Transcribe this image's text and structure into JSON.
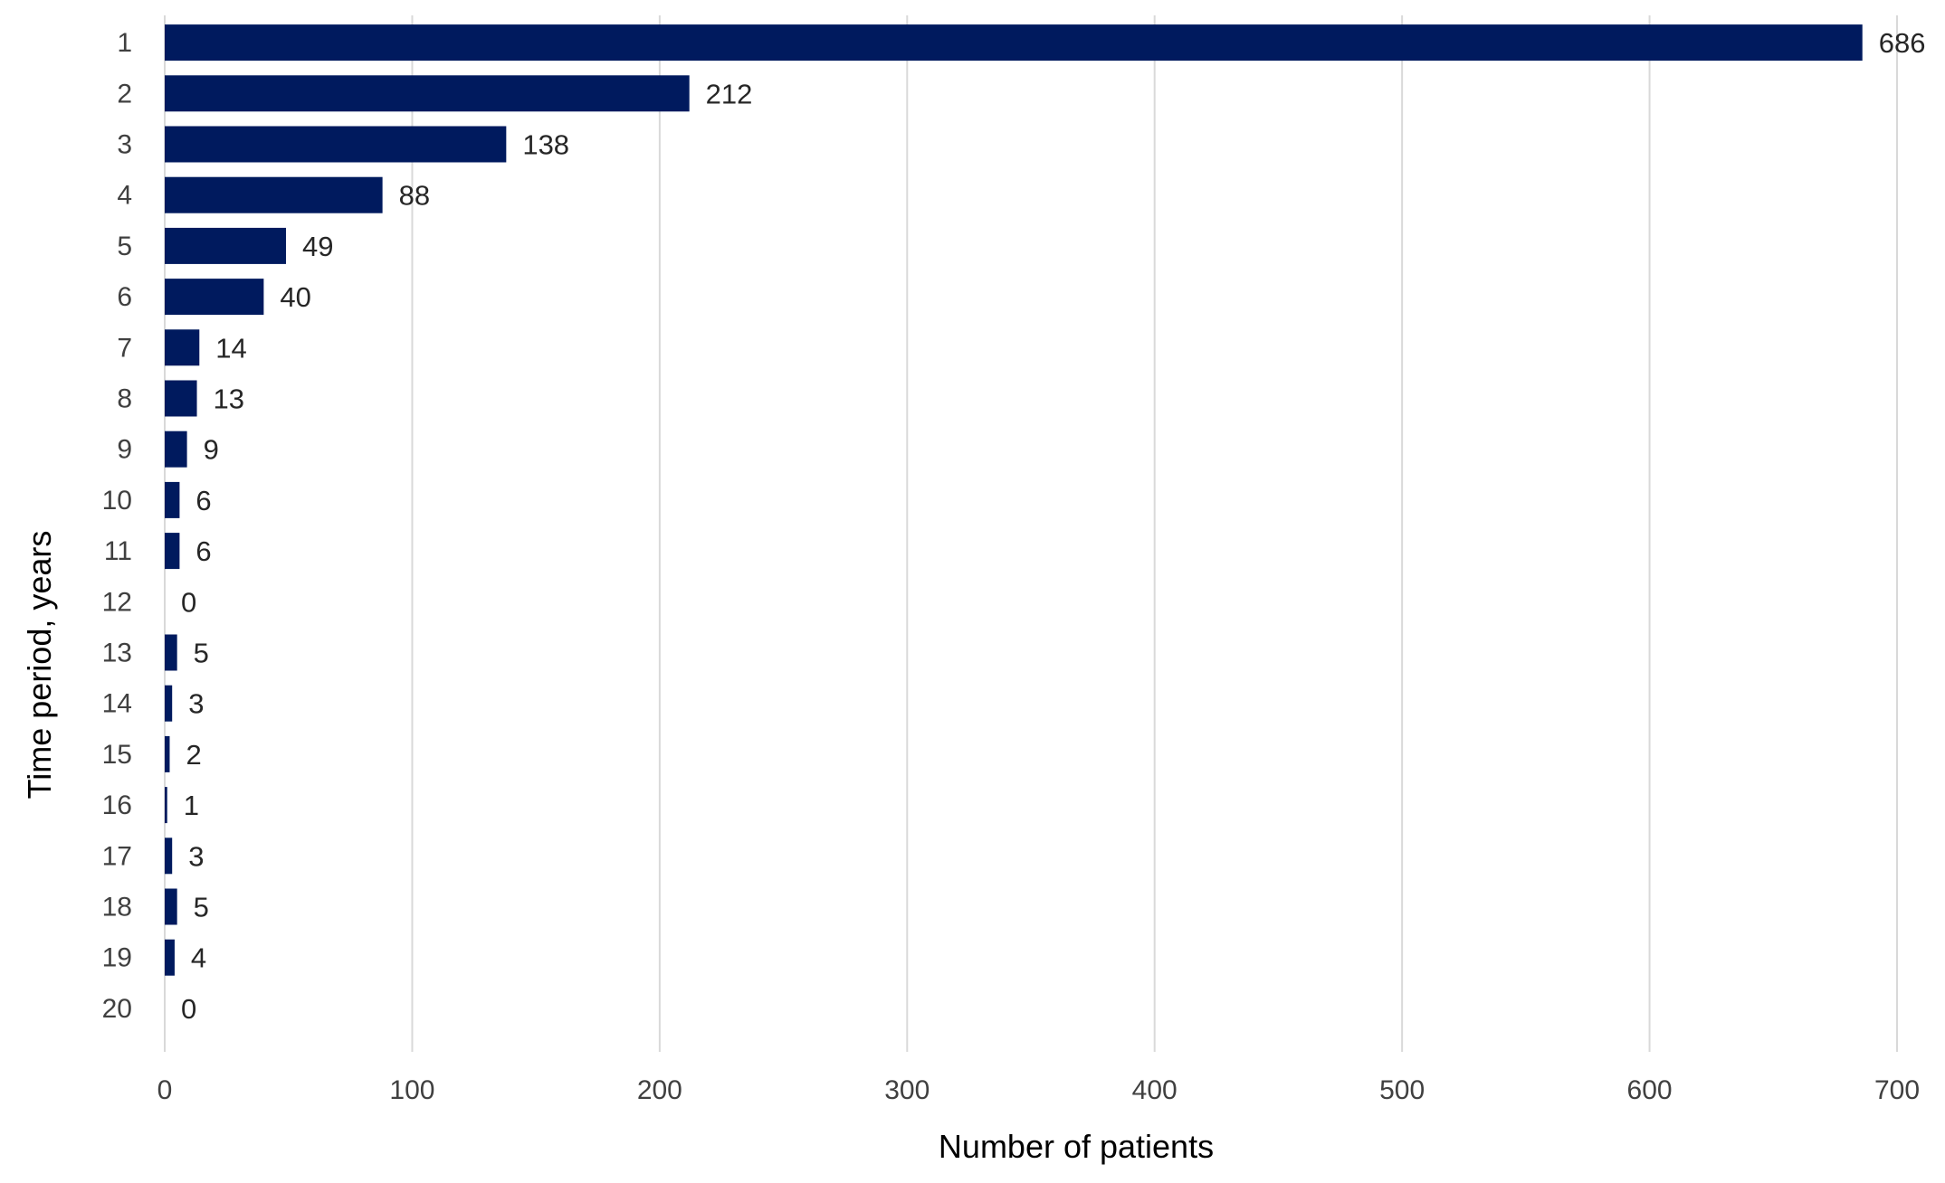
{
  "chart_data": {
    "type": "bar",
    "orientation": "horizontal",
    "title": "",
    "xlabel": "Number of  patients",
    "ylabel": "Time period, years",
    "xlim": [
      0,
      700
    ],
    "x_ticks": [
      0,
      100,
      200,
      300,
      400,
      500,
      600,
      700
    ],
    "grid": "vertical",
    "legend": "none",
    "bar_color": "#001A5E",
    "categories": [
      "1",
      "2",
      "3",
      "4",
      "5",
      "6",
      "7",
      "8",
      "9",
      "10",
      "11",
      "12",
      "13",
      "14",
      "15",
      "16",
      "17",
      "18",
      "19",
      "20"
    ],
    "values": [
      686,
      212,
      138,
      88,
      49,
      40,
      14,
      13,
      9,
      6,
      6,
      0,
      5,
      3,
      2,
      1,
      3,
      5,
      4,
      0
    ],
    "data_labels": [
      "686",
      "212",
      "138",
      "88",
      "49",
      "40",
      "14",
      "13",
      "9",
      "6",
      "6",
      "0",
      "5",
      "3",
      "2",
      "1",
      "3",
      "5",
      "4",
      "0"
    ]
  }
}
